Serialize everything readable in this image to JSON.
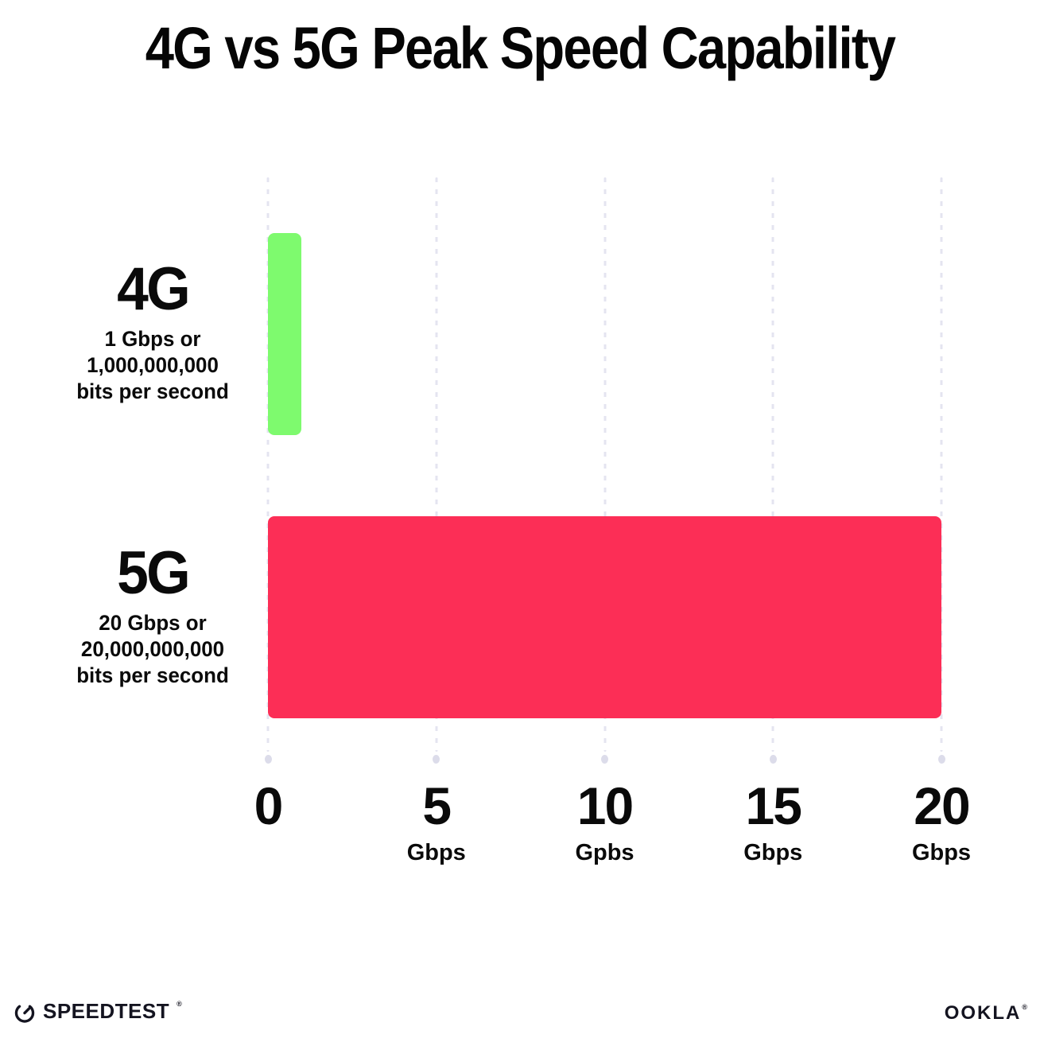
{
  "title": "4G vs 5G Peak Speed Capability",
  "chart_data": {
    "type": "bar",
    "orientation": "horizontal",
    "title": "4G vs 5G Peak Speed Capability",
    "categories": [
      "4G",
      "5G"
    ],
    "values": [
      1,
      20
    ],
    "xlim": [
      0,
      20
    ],
    "grid": "vertical dotted gridlines at each tick, light lavender, with round end dots",
    "legend": "none",
    "bars": [
      {
        "label": "4G",
        "value": 1,
        "color": "#7EFA6E",
        "sublabel_lines": [
          "1 Gbps or",
          "1,000,000,000",
          "bits per second"
        ]
      },
      {
        "label": "5G",
        "value": 20,
        "color": "#FC2E56",
        "sublabel_lines": [
          "20 Gbps or",
          "20,000,000,000",
          "bits per second"
        ]
      }
    ],
    "x_ticks": [
      {
        "label": "0",
        "unit": ""
      },
      {
        "label": "5",
        "unit": "Gbps"
      },
      {
        "label": "10",
        "unit": "Gpbs"
      },
      {
        "label": "15",
        "unit": "Gbps"
      },
      {
        "label": "20",
        "unit": "Gbps"
      }
    ]
  },
  "footer": {
    "speedtest": "SPEEDTEST",
    "ookla": "OOKLA",
    "trademark": "®"
  },
  "colors": {
    "background": "#FFFFFF",
    "bar_4g": "#7EFA6E",
    "bar_5g": "#FC2E56",
    "gridline": "#E4E4F0",
    "gridline_dot": "#DCDCEA",
    "text": "#0A0A0A"
  }
}
